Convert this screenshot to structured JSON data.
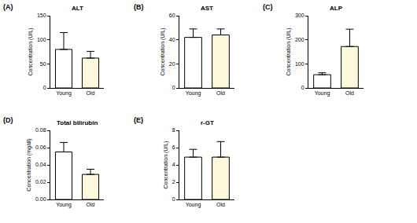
{
  "chart_data": [
    {
      "type": "bar",
      "panel_label": "(A)",
      "title": "ALT",
      "y_label": "Concentration (U/L)",
      "categories": [
        "Young",
        "Old"
      ],
      "values": [
        80,
        62
      ],
      "error": [
        35,
        14
      ],
      "colors": [
        "#ffffff",
        "#fdf9dc"
      ],
      "ylim": [
        0,
        150
      ],
      "yticks": [
        0,
        50,
        100,
        150
      ]
    },
    {
      "type": "bar",
      "panel_label": "(B)",
      "title": "AST",
      "y_label": "Concentration (U/L)",
      "categories": [
        "Young",
        "Old"
      ],
      "values": [
        42,
        44
      ],
      "error": [
        7,
        5
      ],
      "colors": [
        "#ffffff",
        "#fdf9dc"
      ],
      "ylim": [
        0,
        60
      ],
      "yticks": [
        0,
        20,
        40,
        60
      ]
    },
    {
      "type": "bar",
      "panel_label": "(C)",
      "title": "ALP",
      "y_label": "Concentration (U/L)",
      "categories": [
        "Young",
        "Old"
      ],
      "values": [
        55,
        172
      ],
      "error": [
        8,
        72
      ],
      "colors": [
        "#ffffff",
        "#fdf9dc"
      ],
      "ylim": [
        0,
        300
      ],
      "yticks": [
        0,
        100,
        200,
        300
      ]
    },
    {
      "type": "bar",
      "panel_label": "(D)",
      "title": "Total bilirubin",
      "y_label": "Concentration (mg/dl)",
      "categories": [
        "Young",
        "Old"
      ],
      "values": [
        0.055,
        0.029
      ],
      "error": [
        0.011,
        0.006
      ],
      "colors": [
        "#ffffff",
        "#fdf9dc"
      ],
      "ylim": [
        0,
        0.08
      ],
      "yticks": [
        {
          "value": 0,
          "label": "0.00"
        },
        {
          "value": 0.02,
          "label": "0.02"
        },
        {
          "value": 0.04,
          "label": "0.04"
        },
        {
          "value": 0.06,
          "label": "0.06"
        },
        {
          "value": 0.08,
          "label": "0.08"
        }
      ]
    },
    {
      "type": "bar",
      "panel_label": "(E)",
      "title": "r-GT",
      "y_label": "Concentration (U/L)",
      "categories": [
        "Young",
        "Old"
      ],
      "values": [
        4.9,
        4.9
      ],
      "error": [
        0.9,
        1.8
      ],
      "colors": [
        "#ffffff",
        "#fdf9dc"
      ],
      "ylim": [
        0,
        8
      ],
      "yticks": [
        0,
        2,
        4,
        6,
        8
      ]
    }
  ]
}
